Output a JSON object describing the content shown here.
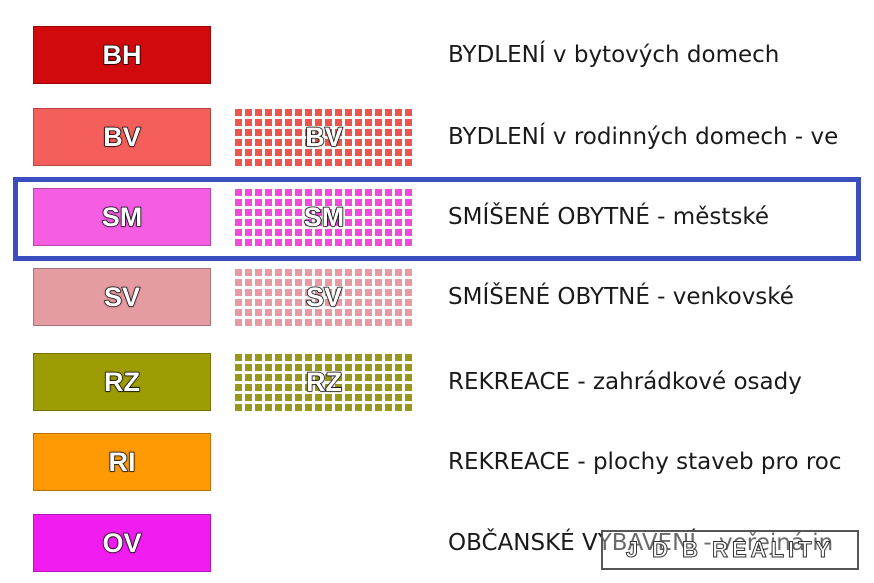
{
  "legend": {
    "rows": [
      {
        "code": "BH",
        "label": "BYDLENÍ v bytových domech",
        "color": "#d10a0e",
        "hatched": false
      },
      {
        "code": "BV",
        "label": "BYDLENÍ v rodinných domech - ve",
        "color": "#f45f5c",
        "hatched": true,
        "hatch_color": "#e9554f"
      },
      {
        "code": "SM",
        "label": "SMÍŠENÉ OBYTNÉ - městské",
        "color": "#f55ee2",
        "hatched": true,
        "hatch_color": "#ef4bd9",
        "highlighted": true
      },
      {
        "code": "SV",
        "label": "SMÍŠENÉ OBYTNÉ - venkovské",
        "color": "#e59ba2",
        "hatched": true,
        "hatch_color": "#e79aa3"
      },
      {
        "code": "RZ",
        "label": "REKREACE - zahrádkové osady",
        "color": "#9e9c05",
        "hatched": true,
        "hatch_color": "#9a981a"
      },
      {
        "code": "RI",
        "label": "REKREACE - plochy staveb pro roc",
        "color": "#ff9a05",
        "hatched": false
      },
      {
        "code": "OV",
        "label": "OBČANSKÉ VYBAVENÍ - veřejná in",
        "color": "#f01cf0",
        "hatched": false
      }
    ]
  },
  "watermark": "J D B REALITY"
}
